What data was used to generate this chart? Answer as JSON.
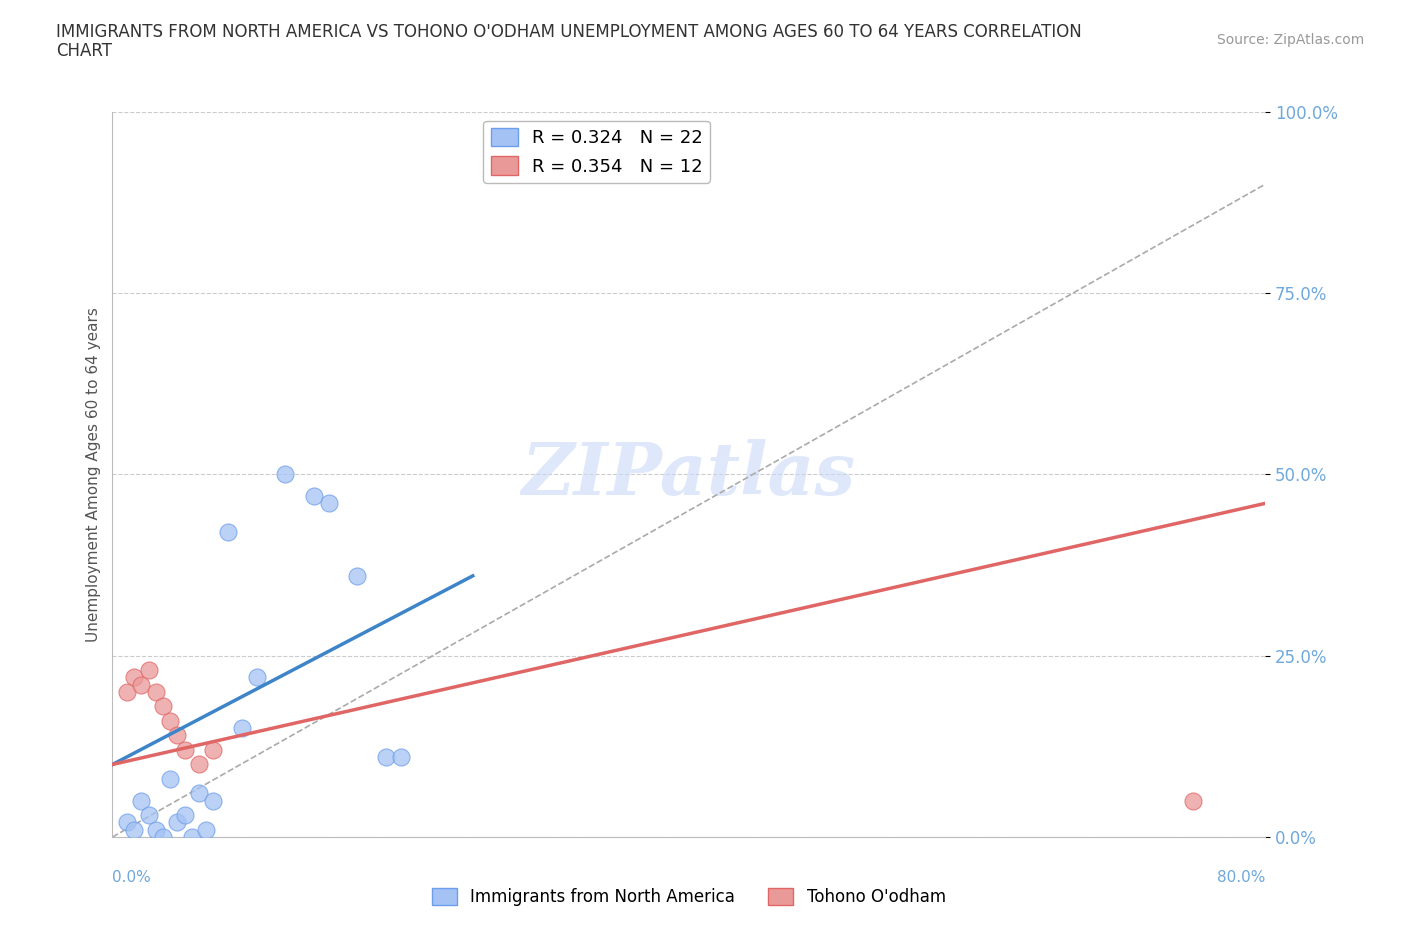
{
  "title_line1": "IMMIGRANTS FROM NORTH AMERICA VS TOHONO O'ODHAM UNEMPLOYMENT AMONG AGES 60 TO 64 YEARS CORRELATION",
  "title_line2": "CHART",
  "source": "Source: ZipAtlas.com",
  "ylabel": "Unemployment Among Ages 60 to 64 years",
  "ytick_labels": [
    "0.0%",
    "25.0%",
    "50.0%",
    "75.0%",
    "100.0%"
  ],
  "ytick_values": [
    0,
    25,
    50,
    75,
    100
  ],
  "xlim": [
    0,
    80
  ],
  "ylim": [
    0,
    100
  ],
  "blue_color": "#a4c2f4",
  "blue_edge_color": "#6d9eeb",
  "pink_color": "#ea9999",
  "pink_edge_color": "#e06666",
  "blue_line_color": "#3d85c8",
  "pink_line_color": "#e06666",
  "diag_color": "#aaaaaa",
  "grid_color": "#cccccc",
  "background_color": "#ffffff",
  "ytick_color": "#6fa8dc",
  "watermark_color": "#c9daf8",
  "blue_scatter_x": [
    1,
    1.5,
    2,
    2.5,
    3,
    3.5,
    4,
    4.5,
    5,
    5.5,
    6,
    6.5,
    7,
    8,
    9,
    10,
    12,
    14,
    15,
    17,
    19,
    20
  ],
  "blue_scatter_y": [
    2,
    1,
    5,
    3,
    1,
    0,
    8,
    2,
    3,
    0,
    6,
    1,
    5,
    42,
    15,
    22,
    50,
    47,
    46,
    36,
    11,
    11
  ],
  "pink_scatter_x": [
    1,
    1.5,
    2,
    2.5,
    3,
    3.5,
    4,
    4.5,
    5,
    6,
    7,
    75
  ],
  "pink_scatter_y": [
    20,
    22,
    21,
    23,
    20,
    18,
    16,
    14,
    12,
    10,
    12,
    5
  ],
  "blue_trend_x0": 0,
  "blue_trend_x1": 25,
  "blue_trend_y0": 10,
  "blue_trend_y1": 36,
  "pink_trend_x0": 0,
  "pink_trend_x1": 80,
  "pink_trend_y0": 10,
  "pink_trend_y1": 46,
  "diag_x0": 0,
  "diag_x1": 80,
  "diag_y0": 0,
  "diag_y1": 90
}
